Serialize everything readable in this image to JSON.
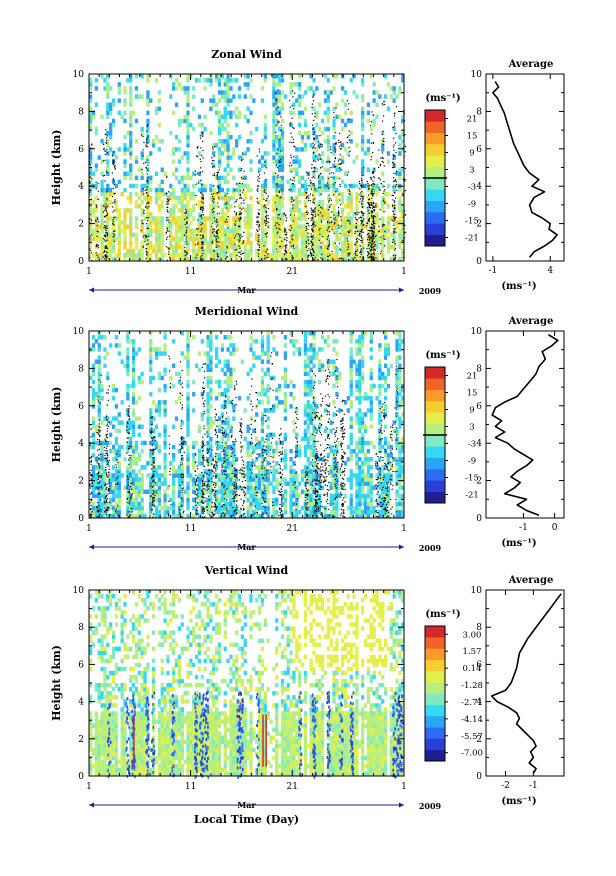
{
  "chart_data": [
    {
      "type": "heatmap",
      "title": "Zonal Wind",
      "ylabel": "Height (km)",
      "xlabel": "",
      "x_ticks": [
        "1",
        "11",
        "21",
        "1"
      ],
      "x_month": "Mar",
      "year": "2009",
      "xlim": [
        1,
        32
      ],
      "ylim": [
        0,
        10
      ],
      "y_ticks": [
        "0",
        "2",
        "4",
        "6",
        "8",
        "10"
      ],
      "colorbar": {
        "unit": "(ms⁻¹)",
        "range": [
          -24,
          24
        ],
        "levels": [
          "21",
          "15",
          "9",
          "3",
          "-3",
          "-9",
          "-15",
          "-21"
        ],
        "zero_line": 0
      },
      "palette": "zonal",
      "profile": {
        "title": "Average",
        "xlabel": "(ms⁻¹)",
        "xlim": [
          -1.6,
          5.2
        ],
        "x_ticks": [
          {
            "v": -1,
            "label": "-1"
          },
          {
            "v": 4,
            "label": "4"
          }
        ],
        "ylim": [
          0,
          10
        ],
        "y_ticks": [
          "0",
          "2",
          "4",
          "6",
          "8",
          "10"
        ],
        "points": [
          [
            -0.8,
            9.6
          ],
          [
            -0.5,
            9.3
          ],
          [
            -1,
            9.0
          ],
          [
            -0.6,
            8.7
          ],
          [
            -0.3,
            8.3
          ],
          [
            0.0,
            7.9
          ],
          [
            0.2,
            7.5
          ],
          [
            0.4,
            7.1
          ],
          [
            0.6,
            6.7
          ],
          [
            0.8,
            6.3
          ],
          [
            1.1,
            5.9
          ],
          [
            1.4,
            5.5
          ],
          [
            1.7,
            5.1
          ],
          [
            2.2,
            4.7
          ],
          [
            3.0,
            4.35
          ],
          [
            2.4,
            4.0
          ],
          [
            3.5,
            3.7
          ],
          [
            2.6,
            3.4
          ],
          [
            2.2,
            3.0
          ],
          [
            2.4,
            2.6
          ],
          [
            3.3,
            2.3
          ],
          [
            4.0,
            2.0
          ],
          [
            3.9,
            1.7
          ],
          [
            4.6,
            1.4
          ],
          [
            4.2,
            1.1
          ],
          [
            3.5,
            0.8
          ],
          [
            2.6,
            0.5
          ],
          [
            2.2,
            0.2
          ]
        ]
      }
    },
    {
      "type": "heatmap",
      "title": "Meridional Wind",
      "ylabel": "Height (km)",
      "xlabel": "",
      "x_ticks": [
        "1",
        "11",
        "21",
        "1"
      ],
      "x_month": "Mar",
      "year": "2009",
      "xlim": [
        1,
        32
      ],
      "ylim": [
        0,
        10
      ],
      "y_ticks": [
        "0",
        "2",
        "4",
        "6",
        "8",
        "10"
      ],
      "colorbar": {
        "unit": "(ms⁻¹)",
        "range": [
          -24,
          24
        ],
        "levels": [
          "21",
          "15",
          "9",
          "3",
          "-3",
          "-9",
          "-15",
          "-21"
        ],
        "zero_line": 0
      },
      "palette": "meridional",
      "profile": {
        "title": "Average",
        "xlabel": "(ms⁻¹)",
        "xlim": [
          -2.2,
          0.3
        ],
        "x_ticks": [
          {
            "v": -1,
            "label": "-1"
          },
          {
            "v": 0,
            "label": "0"
          }
        ],
        "ylim": [
          0,
          10
        ],
        "y_ticks": [
          "0",
          "2",
          "4",
          "6",
          "8",
          "10"
        ],
        "points": [
          [
            -0.2,
            9.8
          ],
          [
            0.1,
            9.5
          ],
          [
            -0.1,
            9.2
          ],
          [
            -0.4,
            8.9
          ],
          [
            -0.3,
            8.5
          ],
          [
            -0.5,
            8.1
          ],
          [
            -0.6,
            7.7
          ],
          [
            -0.8,
            7.3
          ],
          [
            -1.0,
            6.9
          ],
          [
            -1.2,
            6.5
          ],
          [
            -1.6,
            6.2
          ],
          [
            -1.9,
            5.9
          ],
          [
            -2.0,
            5.5
          ],
          [
            -1.7,
            5.2
          ],
          [
            -1.9,
            4.9
          ],
          [
            -1.6,
            4.6
          ],
          [
            -1.9,
            4.3
          ],
          [
            -1.5,
            4.0
          ],
          [
            -1.3,
            3.7
          ],
          [
            -1.0,
            3.4
          ],
          [
            -0.7,
            3.1
          ],
          [
            -0.9,
            2.8
          ],
          [
            -1.2,
            2.5
          ],
          [
            -1.4,
            2.2
          ],
          [
            -1.1,
            1.9
          ],
          [
            -1.3,
            1.6
          ],
          [
            -1.6,
            1.3
          ],
          [
            -0.9,
            1.0
          ],
          [
            -1.2,
            0.7
          ],
          [
            -0.9,
            0.4
          ],
          [
            -0.5,
            0.15
          ]
        ]
      }
    },
    {
      "type": "heatmap",
      "title": "Vertical Wind",
      "ylabel": "Height (km)",
      "xlabel": "Local Time (Day)",
      "x_ticks": [
        "1",
        "11",
        "21",
        "1"
      ],
      "x_month": "Mar",
      "year": "2009",
      "xlim": [
        1,
        32
      ],
      "ylim": [
        0,
        10
      ],
      "y_ticks": [
        "0",
        "2",
        "4",
        "6",
        "8",
        "10"
      ],
      "colorbar": {
        "unit": "(ms⁻¹)",
        "range": [
          -7.7,
          3.7
        ],
        "levels": [
          "3.00",
          "1.57",
          "0.14",
          "-1.28",
          "-2.71",
          "-4.14",
          "-5.57",
          "-7.00"
        ],
        "zero_line": null
      },
      "palette": "vertical",
      "profile": {
        "title": "Average",
        "xlabel": "(ms⁻¹)",
        "xlim": [
          -2.7,
          0.1
        ],
        "x_ticks": [
          {
            "v": -2,
            "label": "-2"
          },
          {
            "v": -1,
            "label": "-1"
          }
        ],
        "ylim": [
          0,
          10
        ],
        "y_ticks": [
          "0",
          "2",
          "4",
          "6",
          "8",
          "10"
        ],
        "points": [
          [
            0.0,
            9.8
          ],
          [
            -0.2,
            9.4
          ],
          [
            -0.4,
            9.0
          ],
          [
            -0.6,
            8.6
          ],
          [
            -0.8,
            8.2
          ],
          [
            -1.0,
            7.8
          ],
          [
            -1.2,
            7.4
          ],
          [
            -1.35,
            7.0
          ],
          [
            -1.5,
            6.6
          ],
          [
            -1.55,
            6.2
          ],
          [
            -1.6,
            5.8
          ],
          [
            -1.7,
            5.4
          ],
          [
            -1.8,
            5.0
          ],
          [
            -2.0,
            4.6
          ],
          [
            -2.5,
            4.3
          ],
          [
            -2.3,
            4.0
          ],
          [
            -1.9,
            3.7
          ],
          [
            -1.6,
            3.4
          ],
          [
            -1.5,
            3.1
          ],
          [
            -1.6,
            2.8
          ],
          [
            -1.4,
            2.5
          ],
          [
            -1.2,
            2.2
          ],
          [
            -1.0,
            1.9
          ],
          [
            -0.9,
            1.6
          ],
          [
            -1.1,
            1.3
          ],
          [
            -1.0,
            1.0
          ],
          [
            -1.15,
            0.7
          ],
          [
            -0.9,
            0.4
          ],
          [
            -1.0,
            0.15
          ]
        ]
      }
    }
  ]
}
